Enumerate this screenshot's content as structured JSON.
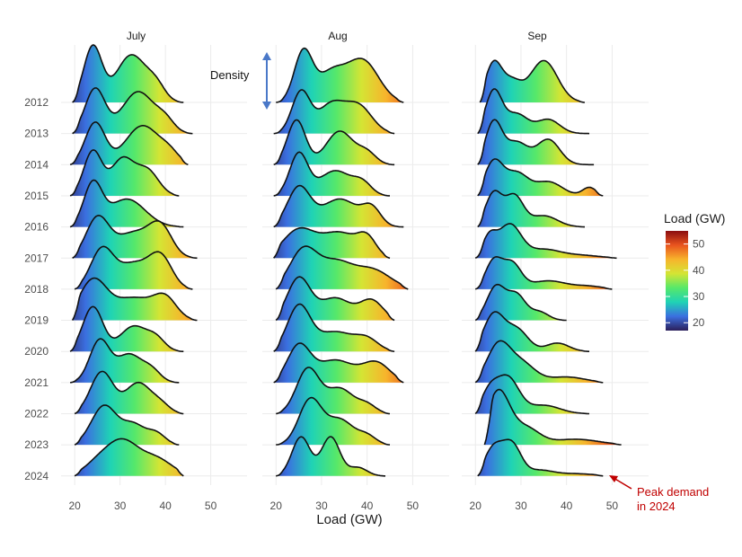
{
  "chart_data": {
    "type": "ridgeline",
    "xlabel": "Load (GW)",
    "x_ticks": [
      20,
      30,
      40,
      50
    ],
    "years": [
      "2012",
      "2013",
      "2014",
      "2015",
      "2016",
      "2017",
      "2018",
      "2019",
      "2020",
      "2021",
      "2022",
      "2023",
      "2024"
    ],
    "colorbar": {
      "title": "Load (GW)",
      "ticks": [
        20,
        30,
        40,
        50
      ],
      "range": [
        17,
        55
      ],
      "colors": [
        "#2c1f5a",
        "#3b6fe0",
        "#1fd3b5",
        "#56e86a",
        "#d4e534",
        "#f7b42c",
        "#e9541e",
        "#8a0d10"
      ]
    },
    "panels": [
      {
        "title": "July",
        "ridges": [
          {
            "year": "2012",
            "range": [
              19.5,
              44
            ],
            "peaks": [
              [
                24,
                1.0,
                2.0
              ],
              [
                32.5,
                0.85,
                3.3
              ],
              [
                38,
                0.25,
                2
              ]
            ]
          },
          {
            "year": "2013",
            "range": [
              19.5,
              46
            ],
            "peaks": [
              [
                24.5,
                0.8,
                2.2
              ],
              [
                34,
                0.75,
                3.5
              ],
              [
                40,
                0.2,
                2
              ]
            ]
          },
          {
            "year": "2014",
            "range": [
              19,
              45
            ],
            "peaks": [
              [
                24.5,
                0.75,
                2.2
              ],
              [
                35,
                0.7,
                3.8
              ],
              [
                41,
                0.15,
                2
              ]
            ]
          },
          {
            "year": "2015",
            "range": [
              19,
              43
            ],
            "peaks": [
              [
                24,
                0.8,
                2.0
              ],
              [
                30.5,
                0.65,
                2.5
              ],
              [
                36,
                0.45,
                2.5
              ]
            ]
          },
          {
            "year": "2016",
            "range": [
              19,
              44
            ],
            "peaks": [
              [
                24,
                0.75,
                2.0
              ],
              [
                31.5,
                0.5,
                4.0
              ]
            ]
          },
          {
            "year": "2017",
            "range": [
              19.5,
              47
            ],
            "peaks": [
              [
                25,
                0.7,
                2.5
              ],
              [
                33,
                0.45,
                4.0
              ],
              [
                39,
                0.5,
                2.5
              ]
            ]
          },
          {
            "year": "2018",
            "range": [
              20,
              46
            ],
            "peaks": [
              [
                26,
                0.7,
                2.5
              ],
              [
                33,
                0.45,
                3.5
              ],
              [
                39,
                0.55,
                2.5
              ]
            ]
          },
          {
            "year": "2019",
            "range": [
              19.5,
              47
            ],
            "peaks": [
              [
                24,
                0.7,
                3.0
              ],
              [
                33,
                0.4,
                4.5
              ],
              [
                40,
                0.35,
                2.5
              ]
            ]
          },
          {
            "year": "2020",
            "range": [
              19,
              44
            ],
            "peaks": [
              [
                24,
                0.8,
                2.2
              ],
              [
                33,
                0.45,
                3.0
              ],
              [
                38,
                0.2,
                2
              ]
            ]
          },
          {
            "year": "2021",
            "range": [
              19,
              43
            ],
            "peaks": [
              [
                25.5,
                0.75,
                2.2
              ],
              [
                32,
                0.5,
                2.8
              ],
              [
                37,
                0.2,
                2
              ]
            ]
          },
          {
            "year": "2022",
            "range": [
              20,
              44
            ],
            "peaks": [
              [
                26,
                0.75,
                2.5
              ],
              [
                34,
                0.55,
                2.8
              ],
              [
                39,
                0.15,
                2
              ]
            ]
          },
          {
            "year": "2023",
            "range": [
              20,
              43
            ],
            "peaks": [
              [
                26.5,
                0.7,
                2.8
              ],
              [
                33,
                0.35,
                2.5
              ],
              [
                38,
                0.2,
                2
              ]
            ]
          },
          {
            "year": "2024",
            "range": [
              20,
              44
            ],
            "peaks": [
              [
                25,
                0.2,
                3.0
              ],
              [
                30.5,
                0.6,
                3.5
              ],
              [
                38,
                0.3,
                3.5
              ]
            ]
          }
        ]
      },
      {
        "title": "Aug",
        "ridges": [
          {
            "year": "2012",
            "range": [
              20,
              48
            ],
            "peaks": [
              [
                26,
                0.9,
                2.0
              ],
              [
                32,
                0.5,
                3.0
              ],
              [
                39,
                0.75,
                3.5
              ]
            ]
          },
          {
            "year": "2013",
            "range": [
              19.5,
              46
            ],
            "peaks": [
              [
                25.5,
                0.75,
                2.0
              ],
              [
                32,
                0.5,
                2.8
              ],
              [
                38,
                0.5,
                3
              ]
            ]
          },
          {
            "year": "2014",
            "range": [
              19.5,
              46
            ],
            "peaks": [
              [
                24.5,
                0.8,
                2.0
              ],
              [
                34,
                0.6,
                3.0
              ],
              [
                40,
                0.2,
                2
              ]
            ]
          },
          {
            "year": "2015",
            "range": [
              19.5,
              45
            ],
            "peaks": [
              [
                25,
                0.75,
                2.0
              ],
              [
                33,
                0.45,
                3.5
              ],
              [
                39,
                0.2,
                2
              ]
            ]
          },
          {
            "year": "2016",
            "range": [
              19.5,
              48
            ],
            "peaks": [
              [
                25,
                0.7,
                2.5
              ],
              [
                34,
                0.5,
                4.0
              ],
              [
                41,
                0.3,
                2
              ]
            ]
          },
          {
            "year": "2017",
            "range": [
              19.5,
              45
            ],
            "peaks": [
              [
                25,
                0.5,
                3.5
              ],
              [
                34,
                0.45,
                4.0
              ],
              [
                40,
                0.3,
                2
              ]
            ]
          },
          {
            "year": "2018",
            "range": [
              20,
              49
            ],
            "peaks": [
              [
                26,
                0.7,
                3.0
              ],
              [
                33,
                0.45,
                3.5
              ],
              [
                41,
                0.35,
                4
              ]
            ]
          },
          {
            "year": "2019",
            "range": [
              20,
              46
            ],
            "peaks": [
              [
                25,
                0.75,
                2.5
              ],
              [
                33,
                0.4,
                3.5
              ],
              [
                41,
                0.35,
                2.5
              ]
            ]
          },
          {
            "year": "2020",
            "range": [
              19.5,
              46
            ],
            "peaks": [
              [
                25,
                0.8,
                2.5
              ],
              [
                33,
                0.35,
                4.0
              ],
              [
                40,
                0.2,
                2.5
              ]
            ]
          },
          {
            "year": "2021",
            "range": [
              19.5,
              48
            ],
            "peaks": [
              [
                25,
                0.65,
                2.5
              ],
              [
                33,
                0.4,
                4.0
              ],
              [
                42,
                0.35,
                3
              ]
            ]
          },
          {
            "year": "2022",
            "range": [
              20,
              45
            ],
            "peaks": [
              [
                27,
                0.8,
                2.5
              ],
              [
                34,
                0.45,
                3.0
              ],
              [
                40,
                0.15,
                2
              ]
            ]
          },
          {
            "year": "2023",
            "range": [
              20,
              45
            ],
            "peaks": [
              [
                27.5,
                0.8,
                2.5
              ],
              [
                34,
                0.45,
                3.0
              ],
              [
                40,
                0.15,
                2
              ]
            ]
          },
          {
            "year": "2024",
            "range": [
              20,
              44
            ],
            "peaks": [
              [
                25.5,
                0.7,
                2.0
              ],
              [
                32,
                0.7,
                2.0
              ],
              [
                38,
                0.15,
                2
              ]
            ]
          }
        ]
      },
      {
        "title": "Sep",
        "ridges": [
          {
            "year": "2012",
            "range": [
              21,
              44
            ],
            "peaks": [
              [
                24,
                0.7,
                1.8
              ],
              [
                28,
                0.35,
                2.0
              ],
              [
                35,
                0.75,
                3.0
              ]
            ]
          },
          {
            "year": "2013",
            "range": [
              20.5,
              45
            ],
            "peaks": [
              [
                24,
                0.75,
                1.8
              ],
              [
                29,
                0.35,
                2.5
              ],
              [
                36,
                0.25,
                2.5
              ]
            ]
          },
          {
            "year": "2014",
            "range": [
              20.5,
              46
            ],
            "peaks": [
              [
                24,
                0.75,
                1.8
              ],
              [
                29,
                0.4,
                2.5
              ],
              [
                36,
                0.45,
                2.5
              ]
            ]
          },
          {
            "year": "2015",
            "range": [
              20.5,
              48
            ],
            "peaks": [
              [
                24,
                0.6,
                2.0
              ],
              [
                29,
                0.4,
                2.5
              ],
              [
                36,
                0.25,
                3
              ],
              [
                45,
                0.15,
                1.5
              ]
            ]
          },
          {
            "year": "2016",
            "range": [
              20.5,
              44
            ],
            "peaks": [
              [
                24,
                0.6,
                1.8
              ],
              [
                28.5,
                0.55,
                2.0
              ],
              [
                35,
                0.2,
                3
              ]
            ]
          },
          {
            "year": "2017",
            "range": [
              20,
              51
            ],
            "peaks": [
              [
                23,
                0.35,
                1.5
              ],
              [
                27.5,
                0.6,
                2.5
              ],
              [
                35,
                0.15,
                3.5
              ],
              [
                43,
                0.05,
                4
              ]
            ]
          },
          {
            "year": "2018",
            "range": [
              20,
              50
            ],
            "peaks": [
              [
                24,
                0.5,
                1.8
              ],
              [
                28,
                0.45,
                2.0
              ],
              [
                36,
                0.15,
                4
              ],
              [
                45,
                0.05,
                3
              ]
            ]
          },
          {
            "year": "2019",
            "range": [
              20,
              40
            ],
            "peaks": [
              [
                24.5,
                0.6,
                2.0
              ],
              [
                29,
                0.45,
                2.0
              ],
              [
                34,
                0.15,
                2
              ]
            ]
          },
          {
            "year": "2020",
            "range": [
              20,
              45
            ],
            "peaks": [
              [
                24,
                0.65,
                2.2
              ],
              [
                29,
                0.4,
                2.5
              ],
              [
                38,
                0.15,
                2.5
              ]
            ]
          },
          {
            "year": "2021",
            "range": [
              20,
              48
            ],
            "peaks": [
              [
                25,
                0.65,
                2.5
              ],
              [
                30,
                0.35,
                3.0
              ],
              [
                40,
                0.1,
                4
              ]
            ]
          },
          {
            "year": "2022",
            "range": [
              20,
              45
            ],
            "peaks": [
              [
                23,
                0.35,
                1.8
              ],
              [
                27,
                0.65,
                2.5
              ],
              [
                35,
                0.15,
                3.5
              ]
            ]
          },
          {
            "year": "2023",
            "range": [
              22,
              52
            ],
            "peaks": [
              [
                25,
                0.95,
                2.5
              ],
              [
                31,
                0.3,
                3.0
              ],
              [
                42,
                0.1,
                5
              ]
            ]
          },
          {
            "year": "2024",
            "range": [
              20.5,
              48
            ],
            "peaks": [
              [
                24,
                0.5,
                2.0
              ],
              [
                28,
                0.55,
                2.0
              ],
              [
                34,
                0.1,
                3
              ],
              [
                42,
                0.04,
                4
              ]
            ]
          }
        ]
      }
    ],
    "annotations": {
      "density_label": "Density",
      "peak_label_line1": "Peak demand",
      "peak_label_line2": "in 2024"
    }
  }
}
